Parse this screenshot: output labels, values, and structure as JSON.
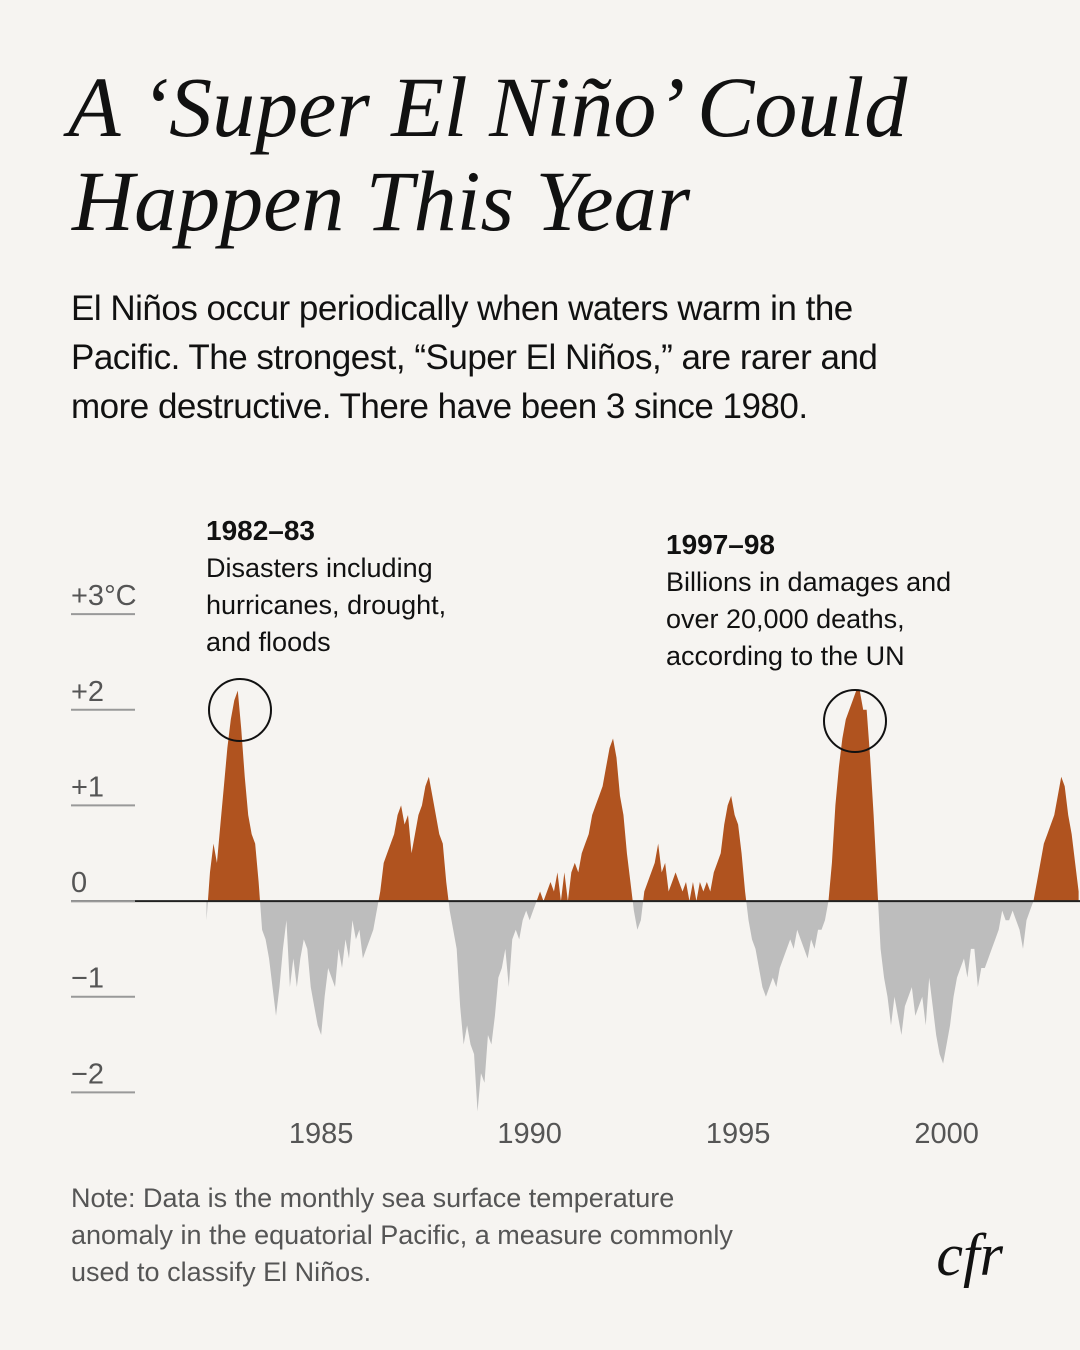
{
  "chart_data": {
    "type": "area",
    "title": [
      "A ‘Super El Niño’ Could",
      "Happen This Year"
    ],
    "subtitle": [
      "El Niños occur periodically when waters warm in the",
      "Pacific. The strongest, “Super El Niños,” are rarer and",
      "more destructive. There have been 3 since 1980."
    ],
    "note": [
      "Note: Data is the monthly sea surface temperature",
      "anomaly in the equatorial Pacific, a measure commonly",
      "used to classify El Niños."
    ],
    "logo": "cfr",
    "annotations": [
      {
        "title": "1982–83",
        "lines": [
          "Disasters including",
          "hurricanes, drought,",
          "and floods"
        ]
      },
      {
        "title": "1997–98",
        "lines": [
          "Billions in damages  and",
          "over 20,000 deaths,",
          "according to the UN"
        ]
      }
    ],
    "color": "#b0531f",
    "negative_color": "#bdbdbd",
    "xlim": [
      1979,
      2003.2
    ],
    "xticks": [
      1985,
      1990,
      1995,
      2000
    ],
    "ylim": [
      -2.2,
      3.2
    ],
    "yticks": [
      {
        "value": 3,
        "label": "+3°C"
      },
      {
        "value": 2,
        "label": "+2"
      },
      {
        "value": 1,
        "label": "+1"
      },
      0,
      {
        "value": -1,
        "label": "−1"
      },
      {
        "value": -2,
        "label": "−2"
      }
    ],
    "x": [
      1982.25,
      1982.333,
      1982.417,
      1982.5,
      1982.583,
      1982.667,
      1982.75,
      1982.833,
      1982.917,
      1983,
      1983.083,
      1983.167,
      1983.25,
      1983.333,
      1983.417,
      1983.5,
      1983.583,
      1983.667,
      1983.75,
      1983.833,
      1983.917,
      1984,
      1984.083,
      1984.167,
      1984.25,
      1984.333,
      1984.417,
      1984.5,
      1984.583,
      1984.667,
      1984.75,
      1984.833,
      1984.917,
      1985,
      1985.083,
      1985.167,
      1985.25,
      1985.333,
      1985.417,
      1985.5,
      1985.583,
      1985.667,
      1985.75,
      1985.833,
      1985.917,
      1986,
      1986.083,
      1986.167,
      1986.25,
      1986.333,
      1986.417,
      1986.5,
      1986.583,
      1986.667,
      1986.75,
      1986.833,
      1986.917,
      1987,
      1987.083,
      1987.167,
      1987.25,
      1987.333,
      1987.417,
      1987.5,
      1987.583,
      1987.667,
      1987.75,
      1987.833,
      1987.917,
      1988,
      1988.083,
      1988.167,
      1988.25,
      1988.333,
      1988.417,
      1988.5,
      1988.583,
      1988.667,
      1988.75,
      1988.833,
      1988.917,
      1989,
      1989.083,
      1989.167,
      1989.25,
      1989.333,
      1989.417,
      1989.5,
      1989.583,
      1989.667,
      1989.75,
      1989.833,
      1989.917,
      1990,
      1990.083,
      1990.167,
      1990.25,
      1990.333,
      1990.417,
      1990.5,
      1990.583,
      1990.667,
      1990.75,
      1990.833,
      1990.917,
      1991,
      1991.083,
      1991.167,
      1991.25,
      1991.333,
      1991.417,
      1991.5,
      1991.583,
      1991.667,
      1991.75,
      1991.833,
      1991.917,
      1992,
      1992.083,
      1992.167,
      1992.25,
      1992.333,
      1992.417,
      1992.5,
      1992.583,
      1992.667,
      1992.75,
      1992.833,
      1992.917,
      1993,
      1993.083,
      1993.167,
      1993.25,
      1993.333,
      1993.417,
      1993.5,
      1993.583,
      1993.667,
      1993.75,
      1993.833,
      1993.917,
      1994,
      1994.083,
      1994.167,
      1994.25,
      1994.333,
      1994.417,
      1994.5,
      1994.583,
      1994.667,
      1994.75,
      1994.833,
      1994.917,
      1995,
      1995.083,
      1995.167,
      1995.25,
      1995.333,
      1995.417,
      1995.5,
      1995.583,
      1995.667,
      1995.75,
      1995.833,
      1995.917,
      1996,
      1996.083,
      1996.167,
      1996.25,
      1996.333,
      1996.417,
      1996.5,
      1996.583,
      1996.667,
      1996.75,
      1996.833,
      1996.917,
      1997,
      1997.083,
      1997.167,
      1997.25,
      1997.333,
      1997.417,
      1997.5,
      1997.583,
      1997.667,
      1997.75,
      1997.833,
      1997.917,
      1998,
      1998.083,
      1998.167,
      1998.25,
      1998.333,
      1998.417,
      1998.5,
      1998.583,
      1998.667,
      1998.75,
      1998.833,
      1998.917,
      1999,
      1999.083,
      1999.167,
      1999.25,
      1999.333,
      1999.417,
      1999.5,
      1999.583,
      1999.667,
      1999.75,
      1999.833,
      1999.917,
      2000,
      2000.083,
      2000.167,
      2000.25,
      2000.333,
      2000.417,
      2000.5,
      2000.583,
      2000.667,
      2000.75,
      2000.833,
      2000.917,
      2001,
      2001.083,
      2001.167,
      2001.25,
      2001.333,
      2001.417,
      2001.5,
      2001.583,
      2001.667,
      2001.75,
      2001.833,
      2001.917,
      2002,
      2002.083,
      2002.167,
      2002.25,
      2002.333,
      2002.417,
      2002.5,
      2002.583,
      2002.667,
      2002.75,
      2002.833,
      2002.917,
      2003,
      2003.083,
      2003.167
    ],
    "values": [
      -0.2,
      0.3,
      0.6,
      0.4,
      0.8,
      1.2,
      1.6,
      1.9,
      2.1,
      2.2,
      1.8,
      1.3,
      0.9,
      0.7,
      0.6,
      0.2,
      -0.3,
      -0.4,
      -0.6,
      -0.9,
      -1.2,
      -0.9,
      -0.5,
      -0.2,
      -0.9,
      -0.6,
      -0.9,
      -0.6,
      -0.4,
      -0.5,
      -0.9,
      -1.1,
      -1.3,
      -1.4,
      -1.0,
      -0.7,
      -0.8,
      -0.9,
      -0.5,
      -0.7,
      -0.4,
      -0.6,
      -0.2,
      -0.4,
      -0.3,
      -0.6,
      -0.5,
      -0.4,
      -0.3,
      -0.1,
      0.1,
      0.4,
      0.5,
      0.6,
      0.7,
      0.9,
      1.0,
      0.8,
      0.9,
      0.5,
      0.7,
      0.9,
      1.0,
      1.2,
      1.3,
      1.1,
      0.9,
      0.7,
      0.6,
      0.2,
      -0.1,
      -0.3,
      -0.5,
      -1.1,
      -1.5,
      -1.3,
      -1.5,
      -1.6,
      -2.2,
      -1.8,
      -1.9,
      -1.4,
      -1.5,
      -1.2,
      -0.8,
      -0.7,
      -0.5,
      -0.9,
      -0.4,
      -0.3,
      -0.4,
      -0.2,
      -0.1,
      -0.2,
      -0.1,
      0,
      0.1,
      0,
      0.1,
      0.2,
      0.1,
      0.3,
      0,
      0.3,
      0,
      0.3,
      0.4,
      0.3,
      0.5,
      0.6,
      0.7,
      0.9,
      1.0,
      1.1,
      1.2,
      1.4,
      1.6,
      1.7,
      1.5,
      1.1,
      0.9,
      0.5,
      0.2,
      -0.1,
      -0.3,
      -0.2,
      0.1,
      0.2,
      0.3,
      0.4,
      0.6,
      0.3,
      0.4,
      0.1,
      0.2,
      0.3,
      0.2,
      0.1,
      0.2,
      0,
      0.2,
      0,
      0.2,
      0.1,
      0.2,
      0.1,
      0.3,
      0.4,
      0.5,
      0.8,
      1.0,
      1.1,
      0.9,
      0.8,
      0.5,
      0.1,
      -0.2,
      -0.4,
      -0.5,
      -0.7,
      -0.9,
      -1.0,
      -0.9,
      -0.8,
      -0.9,
      -0.7,
      -0.6,
      -0.5,
      -0.4,
      -0.5,
      -0.3,
      -0.4,
      -0.5,
      -0.6,
      -0.4,
      -0.5,
      -0.3,
      -0.3,
      -0.2,
      0,
      0.4,
      1.0,
      1.4,
      1.7,
      1.9,
      2.0,
      2.1,
      2.2,
      2.2,
      2.0,
      2.0,
      1.5,
      0.9,
      0.2,
      -0.5,
      -0.8,
      -1.0,
      -1.3,
      -1.0,
      -1.2,
      -1.4,
      -1.1,
      -1.0,
      -0.9,
      -1.2,
      -1.1,
      -1.0,
      -1.3,
      -0.8,
      -1.1,
      -1.4,
      -1.6,
      -1.7,
      -1.5,
      -1.3,
      -1.0,
      -0.8,
      -0.7,
      -0.6,
      -0.8,
      -0.5,
      -0.5,
      -0.9,
      -0.7,
      -0.7,
      -0.6,
      -0.5,
      -0.4,
      -0.3,
      -0.1,
      -0.2,
      -0.2,
      -0.1,
      -0.2,
      -0.3,
      -0.5,
      -0.2,
      -0.1,
      0,
      0.2,
      0.4,
      0.6,
      0.7,
      0.8,
      0.9,
      1.1,
      1.3,
      1.2,
      0.9,
      0.7,
      0.4,
      0.1
    ]
  }
}
